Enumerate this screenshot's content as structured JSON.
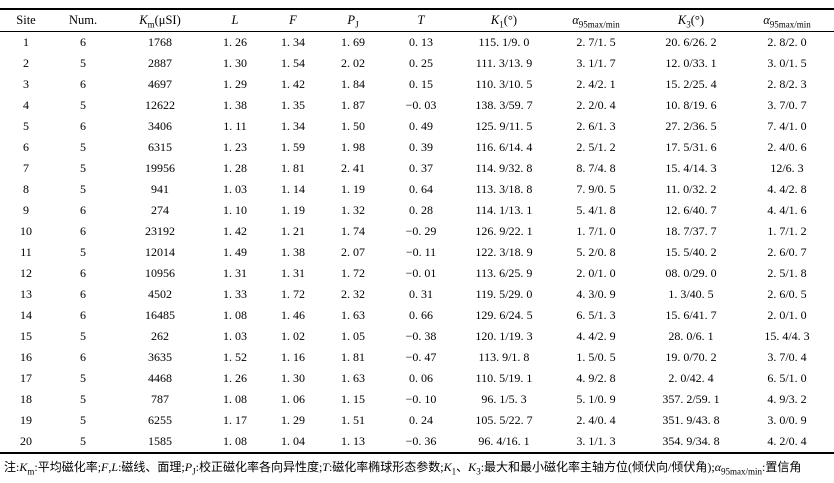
{
  "table": {
    "headers": [
      [
        {
          "t": "Site"
        }
      ],
      [
        {
          "t": "Num."
        }
      ],
      [
        {
          "t": "K",
          "i": true
        },
        {
          "s": "m"
        },
        {
          "t": "(μSI)"
        }
      ],
      [
        {
          "t": "L",
          "i": true
        }
      ],
      [
        {
          "t": "F",
          "i": true
        }
      ],
      [
        {
          "t": "P",
          "i": true
        },
        {
          "s": "J"
        }
      ],
      [
        {
          "t": "T",
          "i": true
        }
      ],
      [
        {
          "t": "K",
          "i": true
        },
        {
          "s": "1"
        },
        {
          "t": "(°)"
        }
      ],
      [
        {
          "t": "α",
          "i": true
        },
        {
          "s": "95max/min"
        }
      ],
      [
        {
          "t": "K",
          "i": true
        },
        {
          "s": "3"
        },
        {
          "t": "(°)"
        }
      ],
      [
        {
          "t": "α",
          "i": true
        },
        {
          "s": "95max/min"
        }
      ]
    ],
    "rows": [
      [
        "1",
        "6",
        "1768",
        "1. 26",
        "1. 34",
        "1. 69",
        "0. 13",
        "115. 1/9. 0",
        "2. 7/1. 5",
        "20. 6/26. 2",
        "2. 8/2. 0"
      ],
      [
        "2",
        "5",
        "2887",
        "1. 30",
        "1. 54",
        "2. 02",
        "0. 25",
        "111. 3/13. 9",
        "3. 1/1. 7",
        "12. 0/33. 1",
        "3. 0/1. 5"
      ],
      [
        "3",
        "6",
        "4697",
        "1. 29",
        "1. 42",
        "1. 84",
        "0. 15",
        "110. 3/10. 5",
        "2. 4/2. 1",
        "15. 2/25. 4",
        "2. 8/2. 3"
      ],
      [
        "4",
        "5",
        "12622",
        "1. 38",
        "1. 35",
        "1. 87",
        "−0. 03",
        "138. 3/59. 7",
        "2. 2/0. 4",
        "10. 8/19. 6",
        "3. 7/0. 7"
      ],
      [
        "5",
        "6",
        "3406",
        "1. 11",
        "1. 34",
        "1. 50",
        "0. 49",
        "125. 9/11. 5",
        "2. 6/1. 3",
        "27. 2/36. 5",
        "7. 4/1. 0"
      ],
      [
        "6",
        "5",
        "6315",
        "1. 23",
        "1. 59",
        "1. 98",
        "0. 39",
        "116. 6/14. 4",
        "2. 5/1. 2",
        "17. 5/31. 6",
        "2. 4/0. 6"
      ],
      [
        "7",
        "5",
        "19956",
        "1. 28",
        "1. 81",
        "2. 41",
        "0. 37",
        "114. 9/32. 8",
        "8. 7/4. 8",
        "15. 4/14. 3",
        "12/6. 3"
      ],
      [
        "8",
        "5",
        "941",
        "1. 03",
        "1. 14",
        "1. 19",
        "0. 64",
        "113. 3/18. 8",
        "7. 9/0. 5",
        "11. 0/32. 2",
        "4. 4/2. 8"
      ],
      [
        "9",
        "6",
        "274",
        "1. 10",
        "1. 19",
        "1. 32",
        "0. 28",
        "114. 1/13. 1",
        "5. 4/1. 8",
        "12. 6/40. 7",
        "4. 4/1. 6"
      ],
      [
        "10",
        "6",
        "23192",
        "1. 42",
        "1. 21",
        "1. 74",
        "−0. 29",
        "126. 9/22. 1",
        "1. 7/1. 0",
        "18. 7/37. 7",
        "1. 7/1. 2"
      ],
      [
        "11",
        "5",
        "12014",
        "1. 49",
        "1. 38",
        "2. 07",
        "−0. 11",
        "122. 3/18. 9",
        "5. 2/0. 8",
        "15. 5/40. 2",
        "2. 6/0. 7"
      ],
      [
        "12",
        "6",
        "10956",
        "1. 31",
        "1. 31",
        "1. 72",
        "−0. 01",
        "113. 6/25. 9",
        "2. 0/1. 0",
        "08. 0/29. 0",
        "2. 5/1. 8"
      ],
      [
        "13",
        "6",
        "4502",
        "1. 33",
        "1. 72",
        "2. 32",
        "0. 31",
        "119. 5/29. 0",
        "4. 3/0. 9",
        "1. 3/40. 5",
        "2. 6/0. 5"
      ],
      [
        "14",
        "6",
        "16485",
        "1. 08",
        "1. 46",
        "1. 63",
        "0. 66",
        "129. 6/24. 5",
        "6. 5/1. 3",
        "15. 6/41. 7",
        "2. 0/1. 0"
      ],
      [
        "15",
        "5",
        "262",
        "1. 03",
        "1. 02",
        "1. 05",
        "−0. 38",
        "120. 1/19. 3",
        "4. 4/2. 9",
        "28. 0/6. 1",
        "15. 4/4. 3"
      ],
      [
        "16",
        "6",
        "3635",
        "1. 52",
        "1. 16",
        "1. 81",
        "−0. 47",
        "113. 9/1. 8",
        "1. 5/0. 5",
        "19. 0/70. 2",
        "3. 7/0. 4"
      ],
      [
        "17",
        "5",
        "4468",
        "1. 26",
        "1. 30",
        "1. 63",
        "0. 06",
        "110. 5/19. 1",
        "4. 9/2. 8",
        "2. 0/42. 4",
        "6. 5/1. 0"
      ],
      [
        "18",
        "5",
        "787",
        "1. 08",
        "1. 06",
        "1. 15",
        "−0. 10",
        "96. 1/5. 3",
        "5. 1/0. 9",
        "357. 2/59. 1",
        "4. 9/3. 2"
      ],
      [
        "19",
        "5",
        "6255",
        "1. 17",
        "1. 29",
        "1. 51",
        "0. 24",
        "105. 5/22. 7",
        "2. 4/0. 4",
        "351. 9/43. 8",
        "3. 0/0. 9"
      ],
      [
        "20",
        "5",
        "1585",
        "1. 08",
        "1. 04",
        "1. 13",
        "−0. 36",
        "96. 4/16. 1",
        "3. 1/1. 3",
        "354. 9/34. 8",
        "4. 2/0. 4"
      ]
    ]
  },
  "footnote": {
    "segments": [
      {
        "t": "注:"
      },
      {
        "t": "K",
        "i": true
      },
      {
        "s": "m"
      },
      {
        "t": ":平均磁化率;"
      },
      {
        "t": "F",
        "i": true
      },
      {
        "t": ","
      },
      {
        "t": "L",
        "i": true
      },
      {
        "t": ":磁线、面理;"
      },
      {
        "t": "P",
        "i": true
      },
      {
        "s": "J"
      },
      {
        "t": ":校正磁化率各向异性度;"
      },
      {
        "t": "T",
        "i": true
      },
      {
        "t": ":磁化率椭球形态参数;"
      },
      {
        "t": "K",
        "i": true
      },
      {
        "s": "1"
      },
      {
        "t": "、"
      },
      {
        "t": "K",
        "i": true
      },
      {
        "s": "3"
      },
      {
        "t": ":最大和最小磁化率主轴方位(倾伏向/倾伏角);"
      },
      {
        "t": "α",
        "i": true
      },
      {
        "s": "95max/min"
      },
      {
        "t": ":置信角"
      }
    ]
  }
}
